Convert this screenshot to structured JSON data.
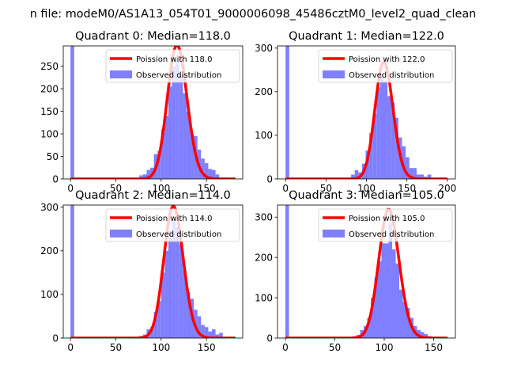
{
  "suptitle": "n file: modeM0/AS1A13_054T01_9000006098_45486cztM0_level2_quad_clean",
  "colors": {
    "observed": "#7f7fff",
    "poisson": "#ff0000",
    "axes": "#000000"
  },
  "chart_data": [
    {
      "type": "bar",
      "title": "Quadrant 0: Median=118.0",
      "median": 118.0,
      "xlim": [
        -8,
        190
      ],
      "ylim": [
        0,
        295
      ],
      "xticks": [
        0,
        50,
        100,
        150
      ],
      "yticks": [
        0,
        50,
        100,
        150,
        200,
        250
      ],
      "legend": {
        "placement": "top-right",
        "poisson_label": "Poission with 118.0",
        "observed_label": "Observed distribution"
      },
      "bin_width": 4,
      "bins": [
        {
          "x": 0,
          "h": 300
        },
        {
          "x": 24,
          "h": 2
        },
        {
          "x": 76,
          "h": 8
        },
        {
          "x": 80,
          "h": 10
        },
        {
          "x": 84,
          "h": 20
        },
        {
          "x": 88,
          "h": 25
        },
        {
          "x": 92,
          "h": 55
        },
        {
          "x": 96,
          "h": 62
        },
        {
          "x": 100,
          "h": 110
        },
        {
          "x": 104,
          "h": 140
        },
        {
          "x": 108,
          "h": 205
        },
        {
          "x": 112,
          "h": 250
        },
        {
          "x": 116,
          "h": 265
        },
        {
          "x": 120,
          "h": 230
        },
        {
          "x": 124,
          "h": 190
        },
        {
          "x": 128,
          "h": 150
        },
        {
          "x": 132,
          "h": 100
        },
        {
          "x": 136,
          "h": 95
        },
        {
          "x": 140,
          "h": 65
        },
        {
          "x": 144,
          "h": 45
        },
        {
          "x": 148,
          "h": 35
        },
        {
          "x": 152,
          "h": 22
        },
        {
          "x": 156,
          "h": 20
        },
        {
          "x": 160,
          "h": 10
        },
        {
          "x": 164,
          "h": 3
        }
      ],
      "curve_range": [
        0,
        182
      ]
    },
    {
      "type": "bar",
      "title": "Quadrant 1: Median=122.0",
      "median": 122.0,
      "xlim": [
        -10,
        210
      ],
      "ylim": [
        0,
        305
      ],
      "xticks": [
        0,
        50,
        100,
        150,
        200
      ],
      "yticks": [
        0,
        100,
        200,
        300
      ],
      "legend": {
        "placement": "top-right",
        "poisson_label": "Poission with 122.0",
        "observed_label": "Observed distribution"
      },
      "bin_width": 4.5,
      "bins": [
        {
          "x": 0,
          "h": 310
        },
        {
          "x": 81,
          "h": 10
        },
        {
          "x": 85.5,
          "h": 20
        },
        {
          "x": 90,
          "h": 15
        },
        {
          "x": 94.5,
          "h": 35
        },
        {
          "x": 99,
          "h": 65
        },
        {
          "x": 103.5,
          "h": 105
        },
        {
          "x": 108,
          "h": 150
        },
        {
          "x": 112.5,
          "h": 210
        },
        {
          "x": 117,
          "h": 240
        },
        {
          "x": 121.5,
          "h": 225
        },
        {
          "x": 126,
          "h": 190
        },
        {
          "x": 130.5,
          "h": 175
        },
        {
          "x": 135,
          "h": 140
        },
        {
          "x": 139.5,
          "h": 95
        },
        {
          "x": 144,
          "h": 75
        },
        {
          "x": 148.5,
          "h": 50
        },
        {
          "x": 153,
          "h": 25
        },
        {
          "x": 157.5,
          "h": 25
        },
        {
          "x": 162,
          "h": 10
        },
        {
          "x": 166.5,
          "h": 10
        },
        {
          "x": 171,
          "h": 5
        },
        {
          "x": 175.5,
          "h": 10
        }
      ],
      "curve_range": [
        0,
        200
      ]
    },
    {
      "type": "bar",
      "title": "Quadrant 2: Median=114.0",
      "median": 114.0,
      "xlim": [
        -8,
        190
      ],
      "ylim": [
        0,
        305
      ],
      "xticks": [
        0,
        50,
        100,
        150
      ],
      "yticks": [
        0,
        100,
        200,
        300
      ],
      "legend": {
        "placement": "top-right",
        "poisson_label": "Poission with 114.0",
        "observed_label": "Observed distribution"
      },
      "bin_width": 4,
      "bins": [
        {
          "x": 0,
          "h": 310
        },
        {
          "x": 24,
          "h": 2
        },
        {
          "x": 76,
          "h": 5
        },
        {
          "x": 80,
          "h": 8
        },
        {
          "x": 84,
          "h": 20
        },
        {
          "x": 88,
          "h": 25
        },
        {
          "x": 92,
          "h": 60
        },
        {
          "x": 96,
          "h": 85
        },
        {
          "x": 100,
          "h": 150
        },
        {
          "x": 104,
          "h": 200
        },
        {
          "x": 108,
          "h": 245
        },
        {
          "x": 112,
          "h": 270
        },
        {
          "x": 116,
          "h": 255
        },
        {
          "x": 120,
          "h": 215
        },
        {
          "x": 124,
          "h": 155
        },
        {
          "x": 128,
          "h": 105
        },
        {
          "x": 132,
          "h": 90
        },
        {
          "x": 136,
          "h": 65
        },
        {
          "x": 140,
          "h": 50
        },
        {
          "x": 144,
          "h": 30
        },
        {
          "x": 148,
          "h": 25
        },
        {
          "x": 152,
          "h": 15
        },
        {
          "x": 156,
          "h": 20
        },
        {
          "x": 160,
          "h": 8
        },
        {
          "x": 164,
          "h": 12
        },
        {
          "x": 168,
          "h": 3
        }
      ],
      "curve_range": [
        0,
        182
      ]
    },
    {
      "type": "bar",
      "title": "Quadrant 3: Median=105.0",
      "median": 105.0,
      "xlim": [
        -8,
        172
      ],
      "ylim": [
        0,
        330
      ],
      "xticks": [
        0,
        50,
        100,
        150
      ],
      "yticks": [
        0,
        100,
        200,
        300
      ],
      "legend": {
        "placement": "top-right",
        "poisson_label": "Poission with 105.0",
        "observed_label": "Observed distribution"
      },
      "bin_width": 3.6,
      "bins": [
        {
          "x": 0,
          "h": 340
        },
        {
          "x": 68.4,
          "h": 5
        },
        {
          "x": 72,
          "h": 8
        },
        {
          "x": 75.6,
          "h": 20
        },
        {
          "x": 79.2,
          "h": 30
        },
        {
          "x": 82.8,
          "h": 50
        },
        {
          "x": 86.4,
          "h": 100
        },
        {
          "x": 90,
          "h": 150
        },
        {
          "x": 93.6,
          "h": 190
        },
        {
          "x": 97.2,
          "h": 235
        },
        {
          "x": 100.8,
          "h": 235
        },
        {
          "x": 104.4,
          "h": 285
        },
        {
          "x": 108,
          "h": 220
        },
        {
          "x": 111.6,
          "h": 185
        },
        {
          "x": 115.2,
          "h": 120
        },
        {
          "x": 118.8,
          "h": 90
        },
        {
          "x": 122.4,
          "h": 75
        },
        {
          "x": 126,
          "h": 50
        },
        {
          "x": 129.6,
          "h": 30
        },
        {
          "x": 133.2,
          "h": 20
        },
        {
          "x": 136.8,
          "h": 15
        },
        {
          "x": 140.4,
          "h": 10
        },
        {
          "x": 144,
          "h": 5
        }
      ],
      "curve_range": [
        0,
        164
      ]
    }
  ]
}
